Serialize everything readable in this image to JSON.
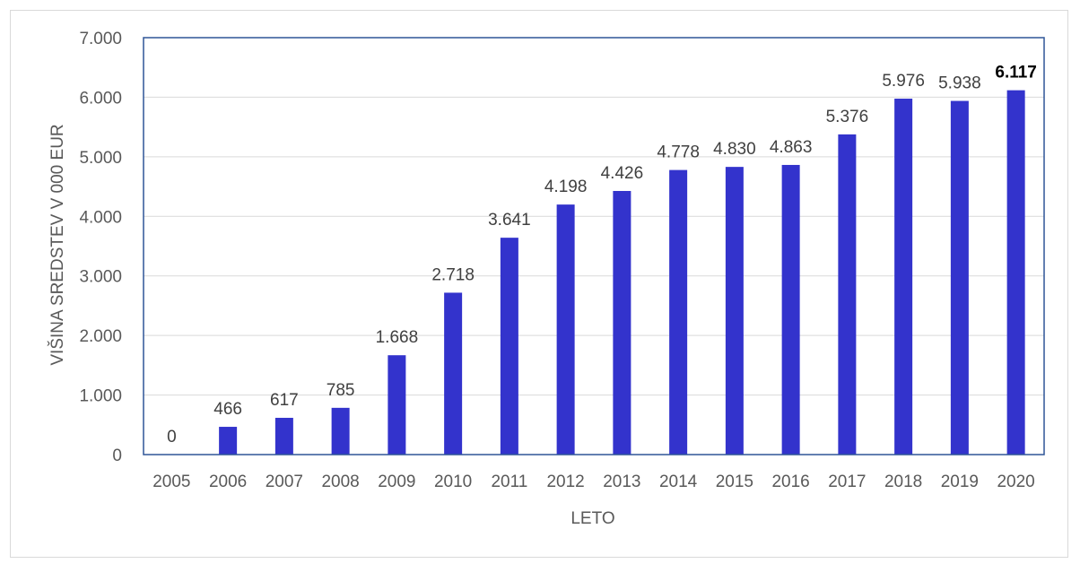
{
  "chart_data": {
    "type": "bar",
    "title": "",
    "xlabel": "LETO",
    "ylabel": "VIŠINA SREDSTEV V 000 EUR",
    "categories": [
      "2005",
      "2006",
      "2007",
      "2008",
      "2009",
      "2010",
      "2011",
      "2012",
      "2013",
      "2014",
      "2015",
      "2016",
      "2017",
      "2018",
      "2019",
      "2020"
    ],
    "values": [
      0,
      466,
      617,
      785,
      1668,
      2718,
      3641,
      4198,
      4426,
      4778,
      4830,
      4863,
      5376,
      5976,
      5938,
      6117
    ],
    "value_labels": [
      "0",
      "466",
      "617",
      "785",
      "1.668",
      "2.718",
      "3.641",
      "4.198",
      "4.426",
      "4.778",
      "4.830",
      "4.863",
      "5.376",
      "5.976",
      "5.938",
      "6.117"
    ],
    "bold_labels": [
      "6.117"
    ],
    "ylim": [
      0,
      7000
    ],
    "yticks": [
      0,
      1000,
      2000,
      3000,
      4000,
      5000,
      6000,
      7000
    ],
    "ytick_labels": [
      "0",
      "1.000",
      "2.000",
      "3.000",
      "4.000",
      "5.000",
      "6.000",
      "7.000"
    ],
    "grid": true,
    "legend": "none",
    "colors": {
      "bar": "#3333cc",
      "plot_border": "#2f5597",
      "grid": "#d9d9d9"
    }
  }
}
